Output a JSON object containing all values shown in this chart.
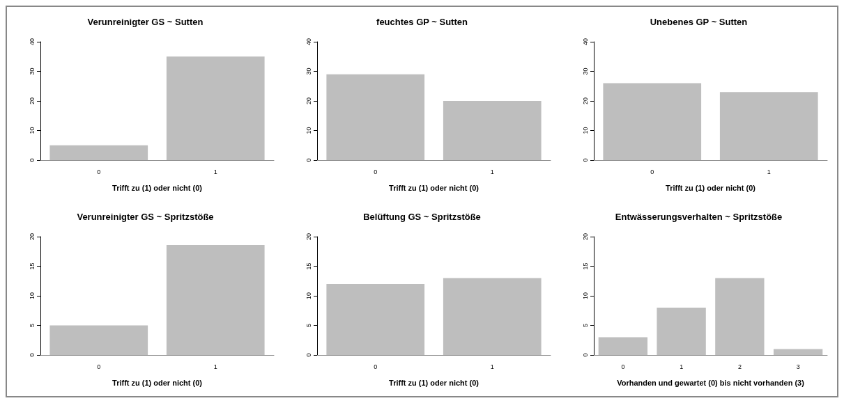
{
  "chart_data": [
    {
      "type": "bar",
      "title": "Verunreinigter GS ~ Sutten",
      "xlabel": "Trifft zu (1) oder nicht (0)",
      "categories": [
        "0",
        "1"
      ],
      "values": [
        5,
        35
      ],
      "color": "#bebebe",
      "ylim": [
        0,
        40
      ],
      "yticks": [
        0,
        10,
        20,
        30,
        40
      ],
      "grid": false
    },
    {
      "type": "bar",
      "title": "feuchtes GP ~ Sutten",
      "xlabel": "Trifft zu (1) oder nicht (0)",
      "categories": [
        "0",
        "1"
      ],
      "values": [
        29,
        20
      ],
      "color": "#bebebe",
      "ylim": [
        0,
        40
      ],
      "yticks": [
        0,
        10,
        20,
        30,
        40
      ],
      "grid": false
    },
    {
      "type": "bar",
      "title": "Unebenes GP ~ Sutten",
      "xlabel": "Trifft zu (1) oder nicht (0)",
      "categories": [
        "0",
        "1"
      ],
      "values": [
        26,
        23
      ],
      "color": "#bebebe",
      "ylim": [
        0,
        40
      ],
      "yticks": [
        0,
        10,
        20,
        30,
        40
      ],
      "grid": false
    },
    {
      "type": "bar",
      "title": "Verunreinigter GS ~ Spritzstöße",
      "xlabel": "Trifft zu (1) oder nicht (0)",
      "categories": [
        "0",
        "1"
      ],
      "values": [
        5,
        18.6
      ],
      "color": "#bebebe",
      "ylim": [
        0,
        20
      ],
      "yticks": [
        0,
        5,
        10,
        15,
        20
      ],
      "grid": false
    },
    {
      "type": "bar",
      "title": "Belüftung GS ~ Spritzstöße",
      "xlabel": "Trifft zu (1) oder nicht (0)",
      "categories": [
        "0",
        "1"
      ],
      "values": [
        12,
        13
      ],
      "color": "#bebebe",
      "ylim": [
        0,
        20
      ],
      "yticks": [
        0,
        5,
        10,
        15,
        20
      ],
      "grid": false
    },
    {
      "type": "bar",
      "title": "Entwässerungsverhalten ~ Spritzstöße",
      "xlabel": "Vorhanden und gewartet (0) bis nicht vorhanden (3)",
      "categories": [
        "0",
        "1",
        "2",
        "3"
      ],
      "values": [
        3,
        8,
        13,
        1
      ],
      "color": "#bebebe",
      "ylim": [
        0,
        20
      ],
      "yticks": [
        0,
        5,
        10,
        15,
        20
      ],
      "grid": false
    }
  ]
}
